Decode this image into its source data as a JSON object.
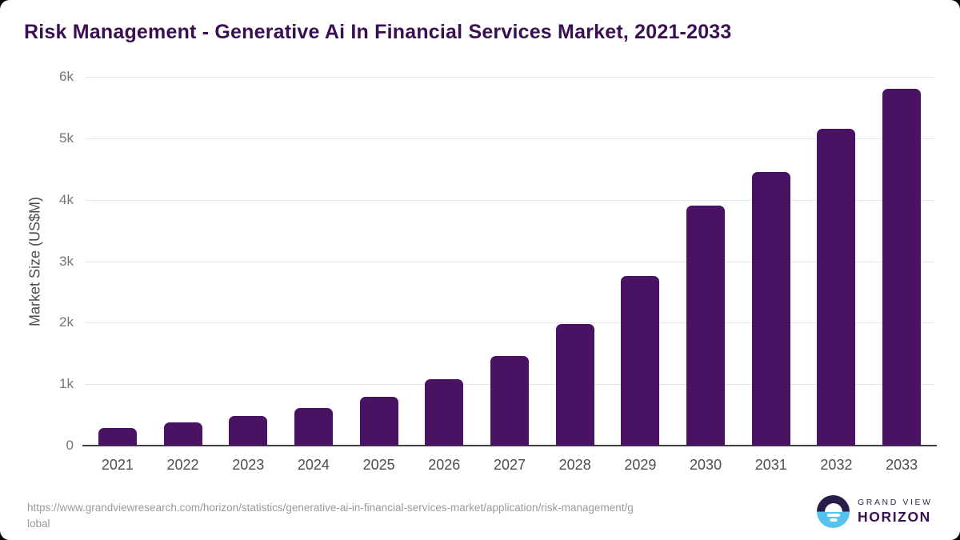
{
  "header": {
    "title": "Risk Management - Generative Ai In Financial Services Market, 2021-2033"
  },
  "chart_data": {
    "type": "bar",
    "title": "Risk Management - Generative Ai In Financial Services Market, 2021-2033",
    "categories": [
      "2021",
      "2022",
      "2023",
      "2024",
      "2025",
      "2026",
      "2027",
      "2028",
      "2029",
      "2030",
      "2031",
      "2032",
      "2033"
    ],
    "values": [
      290,
      375,
      480,
      610,
      795,
      1085,
      1455,
      1985,
      2760,
      3910,
      4450,
      5160,
      5810
    ],
    "xlabel": "",
    "ylabel": "Market Size (US$M)",
    "ylim": [
      0,
      6000
    ],
    "yticks": [
      0,
      1000,
      2000,
      3000,
      4000,
      5000,
      6000
    ],
    "ytick_labels": [
      "0",
      "1k",
      "2k",
      "3k",
      "4k",
      "5k",
      "6k"
    ],
    "grid": true,
    "legend": false,
    "bar_color": "#4A1262"
  },
  "colors": {
    "title": "#3B1052",
    "bar": "#4A1262",
    "gridline": "#E6E6E6",
    "axis_line": "#414141",
    "tick_text": "#757575",
    "category_text": "#4D4D4D",
    "url_text": "#9A9A9A",
    "logo_dark": "#2A1C49",
    "logo_blue": "#57C2EE"
  },
  "footer": {
    "url_line1": "https://www.grandviewresearch.com/horizon/statistics/generative-ai-in-financial-services-market/application/risk-management/g",
    "url_line2": "lobal",
    "brand": {
      "name_top": "GRAND VIEW",
      "name_bottom": "HORIZON"
    }
  }
}
